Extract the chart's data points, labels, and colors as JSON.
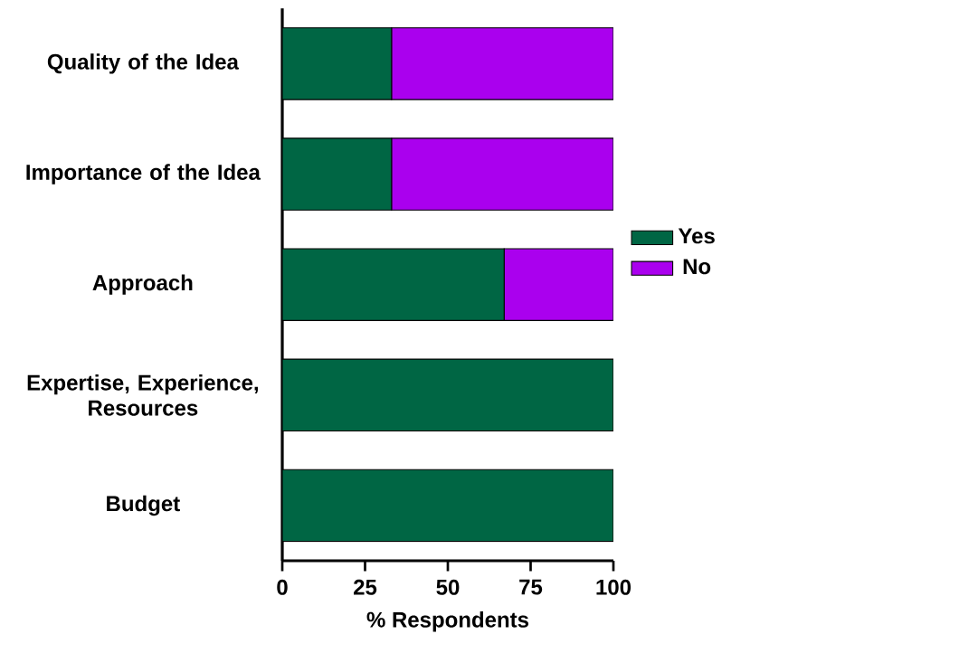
{
  "chart_data": {
    "type": "bar",
    "orientation": "horizontal",
    "stacked": true,
    "xlabel": "% Respondents",
    "categories": [
      "Quality of the Idea",
      "Importance of the Idea",
      "Approach",
      "Expertise, Experience, Resources",
      "Budget"
    ],
    "series": [
      {
        "name": "Yes",
        "color": "#006644",
        "values": [
          33,
          33,
          67,
          100,
          100
        ]
      },
      {
        "name": "No",
        "color": "#aa00ee",
        "values": [
          67,
          67,
          33,
          0,
          0
        ]
      }
    ],
    "xlim": [
      0,
      100
    ],
    "xticks": [
      0,
      25,
      50,
      75,
      100
    ],
    "legend": "right",
    "grid": false
  }
}
